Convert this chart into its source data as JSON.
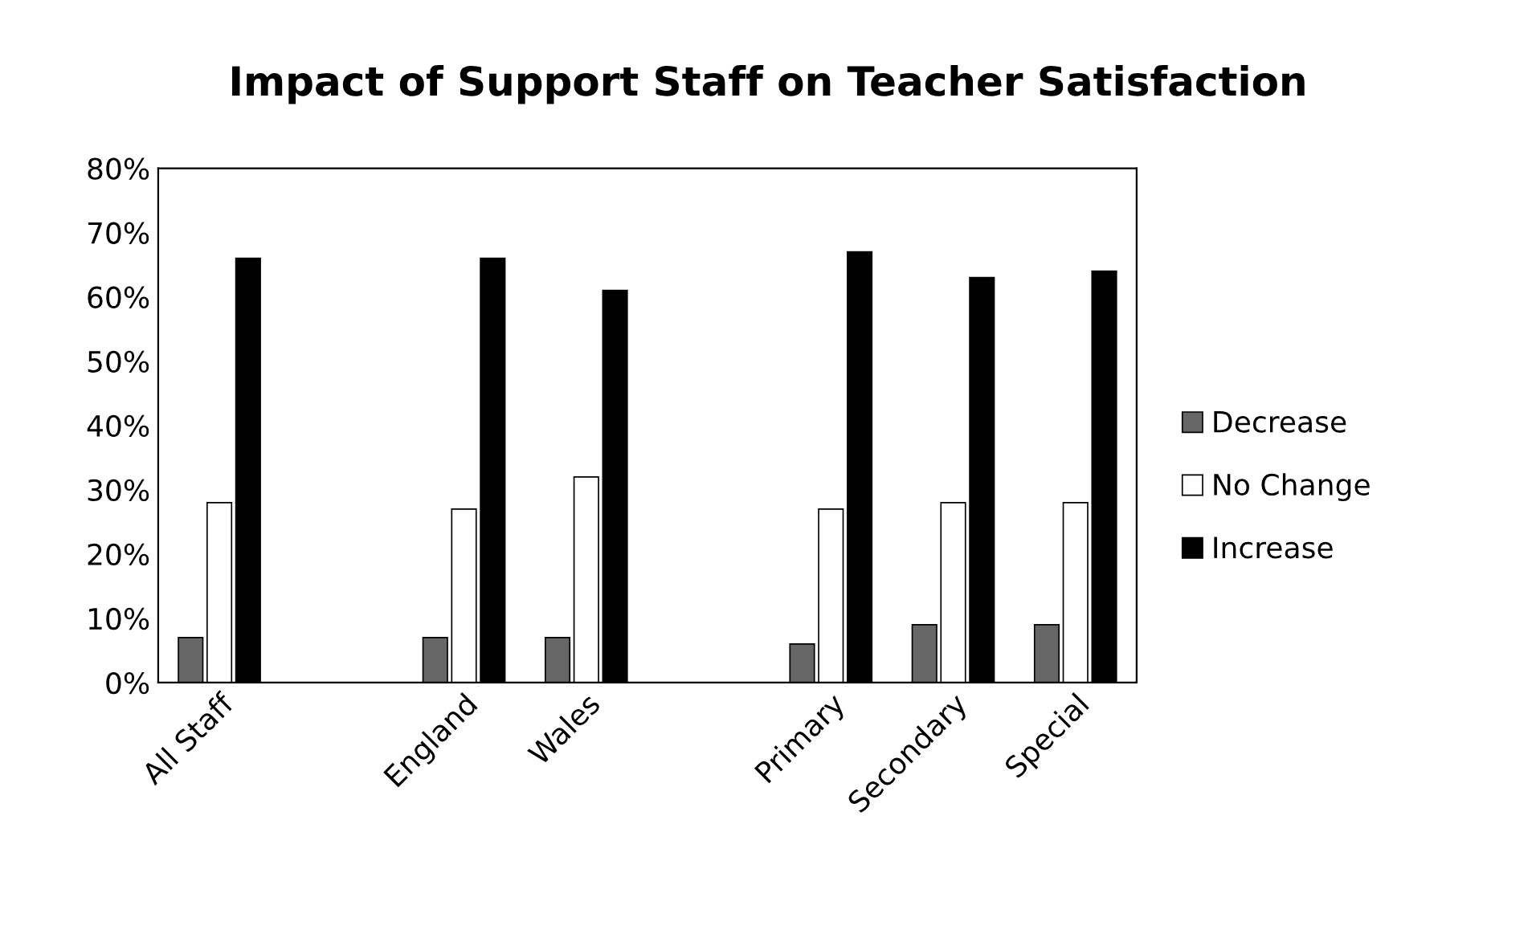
{
  "chart_data": {
    "type": "bar",
    "title": "Impact of Support Staff on Teacher Satisfaction",
    "categories": [
      "All Staff",
      null,
      "England",
      "Wales",
      null,
      "Primary",
      "Secondary",
      "Special"
    ],
    "series": [
      {
        "name": "Decrease",
        "color": "#666666",
        "values": [
          7,
          null,
          7,
          7,
          null,
          6,
          9,
          9
        ]
      },
      {
        "name": "No Change",
        "color": "#ffffff",
        "values": [
          28,
          null,
          27,
          32,
          null,
          27,
          28,
          28
        ]
      },
      {
        "name": "Increase",
        "color": "#000000",
        "values": [
          66,
          null,
          66,
          61,
          null,
          67,
          63,
          64
        ]
      }
    ],
    "ylim": [
      0,
      80
    ],
    "yticks": [
      {
        "value": 0,
        "label": "0%"
      },
      {
        "value": 10,
        "label": "10%"
      },
      {
        "value": 20,
        "label": "20%"
      },
      {
        "value": 30,
        "label": "30%"
      },
      {
        "value": 40,
        "label": "40%"
      },
      {
        "value": 50,
        "label": "50%"
      },
      {
        "value": 60,
        "label": "60%"
      },
      {
        "value": 70,
        "label": "70%"
      },
      {
        "value": 80,
        "label": "80%"
      }
    ],
    "grid": false,
    "legend": "right"
  }
}
